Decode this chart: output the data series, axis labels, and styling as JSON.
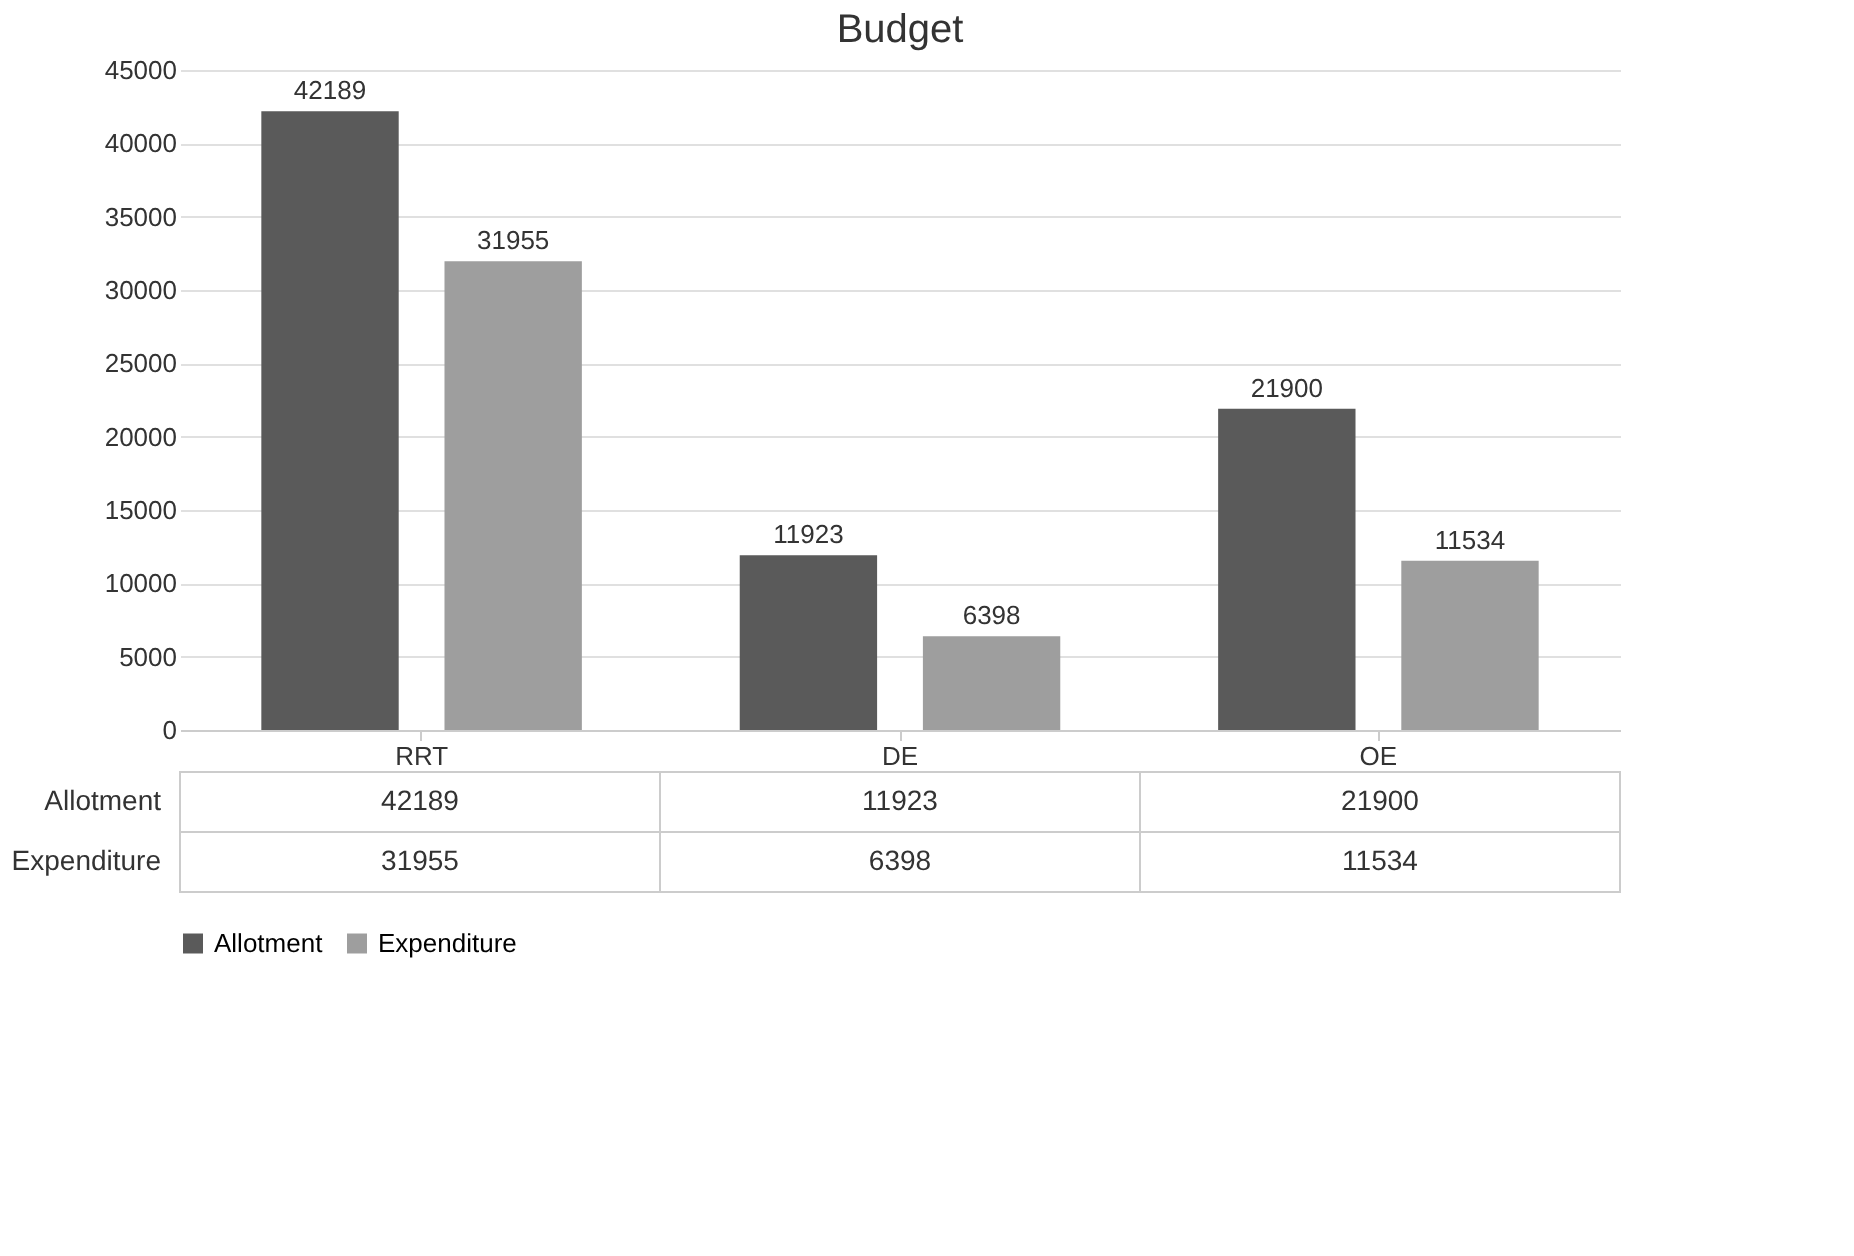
{
  "chart_data": {
    "type": "bar",
    "title": "Budget",
    "categories": [
      "RRT",
      "DE",
      "OE"
    ],
    "series": [
      {
        "name": "Allotment",
        "color": "#5a5a5a",
        "values": [
          42189,
          11923,
          21900
        ],
        "value_labels": [
          "42189",
          "11923",
          "21900"
        ]
      },
      {
        "name": "Expenditure",
        "color": "#9e9e9e",
        "values": [
          31955,
          6398,
          11534
        ],
        "value_labels": [
          "31955",
          "6398",
          "11534"
        ]
      }
    ],
    "ylim": [
      0,
      45000
    ],
    "yticks": [
      0,
      5000,
      10000,
      15000,
      20000,
      25000,
      30000,
      35000,
      40000,
      45000
    ],
    "grid": "y",
    "legend": "bottom",
    "data_labels": true
  }
}
